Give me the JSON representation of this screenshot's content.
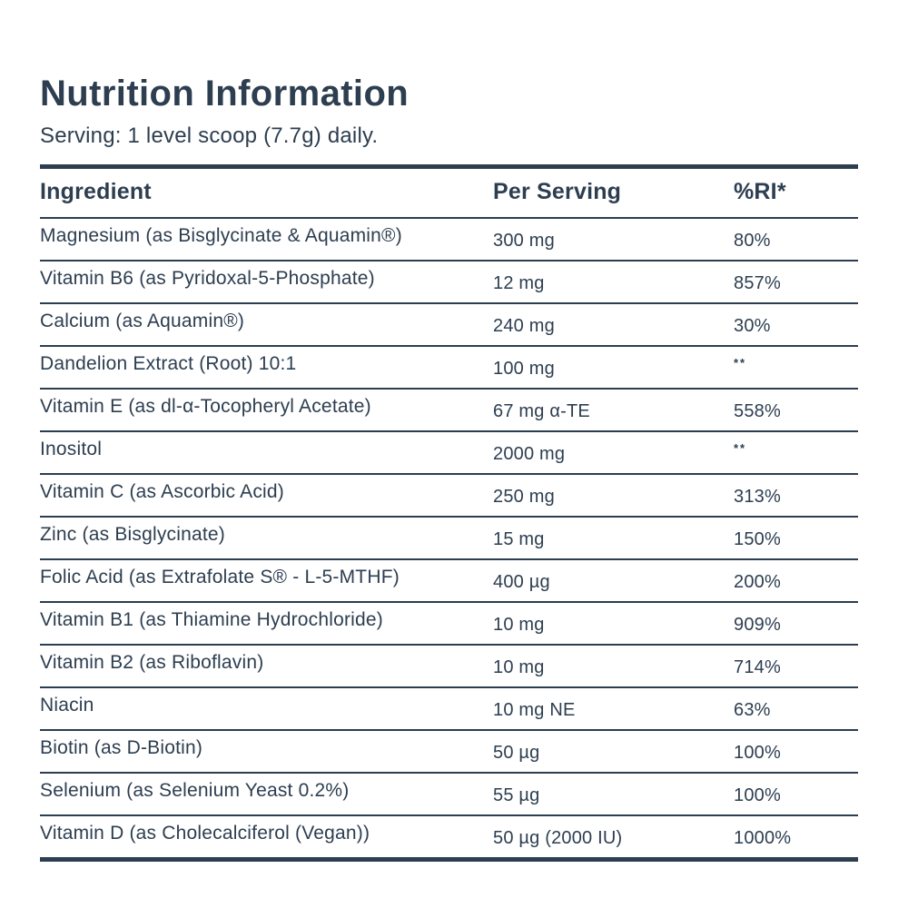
{
  "colors": {
    "text": "#2d3e50",
    "border": "#2d3e50",
    "background": "#ffffff"
  },
  "header": {
    "title": "Nutrition Information",
    "serving_line": "Serving: 1 level scoop (7.7g) daily."
  },
  "table": {
    "headers": [
      "Ingredient",
      "Per Serving",
      "%RI*"
    ],
    "rows": [
      {
        "ingredient": "Magnesium (as Bisglycinate & Aquamin®)",
        "per_serving": "300 mg",
        "ri": "80%"
      },
      {
        "ingredient": "Vitamin B6 (as Pyridoxal-5-Phosphate)",
        "per_serving": "12 mg",
        "ri": "857%"
      },
      {
        "ingredient": "Calcium (as Aquamin®)",
        "per_serving": "240 mg",
        "ri": "30%"
      },
      {
        "ingredient": "Dandelion Extract (Root) 10:1",
        "per_serving": "100 mg",
        "ri": "**"
      },
      {
        "ingredient": "Vitamin E (as dl-α-Tocopheryl Acetate)",
        "per_serving": "67 mg α-TE",
        "ri": "558%"
      },
      {
        "ingredient": "Inositol",
        "per_serving": "2000 mg",
        "ri": "**"
      },
      {
        "ingredient": "Vitamin C (as Ascorbic Acid)",
        "per_serving": "250 mg",
        "ri": "313%"
      },
      {
        "ingredient": "Zinc (as Bisglycinate)",
        "per_serving": "15 mg",
        "ri": "150%"
      },
      {
        "ingredient": "Folic Acid (as Extrafolate S® - L-5-MTHF)",
        "per_serving": "400 µg",
        "ri": "200%"
      },
      {
        "ingredient": "Vitamin B1 (as Thiamine Hydrochloride)",
        "per_serving": "10 mg",
        "ri": "909%"
      },
      {
        "ingredient": "Vitamin B2 (as Riboflavin)",
        "per_serving": "10 mg",
        "ri": "714%"
      },
      {
        "ingredient": "Niacin",
        "per_serving": "10 mg NE",
        "ri": "63%"
      },
      {
        "ingredient": "Biotin (as D-Biotin)",
        "per_serving": "50 µg",
        "ri": "100%"
      },
      {
        "ingredient": "Selenium (as Selenium Yeast 0.2%)",
        "per_serving": "55 µg",
        "ri": "100%"
      },
      {
        "ingredient": "Vitamin D (as Cholecalciferol (Vegan))",
        "per_serving": "50 µg (2000 IU)",
        "ri": "1000%"
      }
    ]
  }
}
